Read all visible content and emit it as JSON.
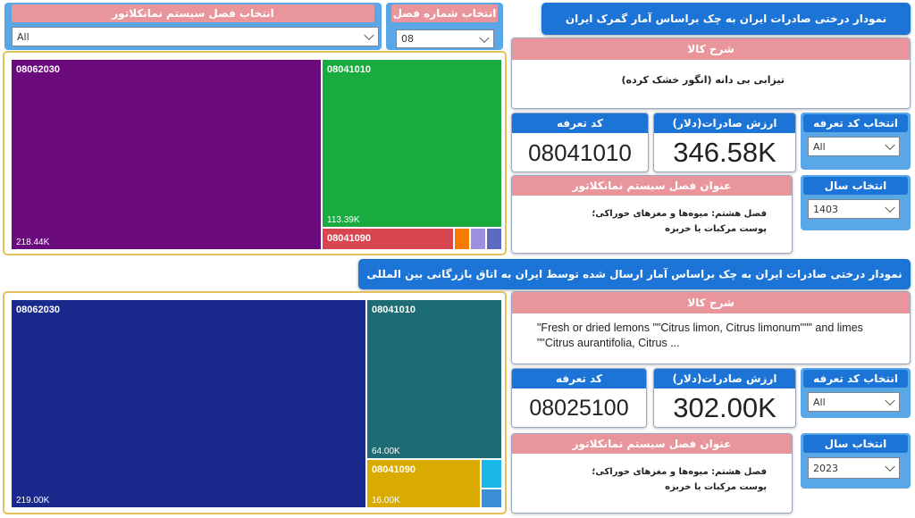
{
  "top": {
    "title": "نمودار درختی صادرات ایران به چک براساس آمار گمرک ایران",
    "nomenclature_slicer": {
      "label": "انتخاب فصل سیستم نمانکلاتور",
      "value": "All"
    },
    "chapter_slicer": {
      "label": "انتخاب شماره فصل",
      "value": "08"
    },
    "goods_desc": {
      "label": "شرح کالا",
      "value": "تیزابی بی دانه (انگور خشک کرده)"
    },
    "tariff_code": {
      "label": "کد تعرفه",
      "value": "08041010"
    },
    "export_value": {
      "label": "ارزش صادرات(دلار)",
      "value": "346.58K"
    },
    "tariff_slicer": {
      "label": "انتخاب کد تعرفه",
      "value": "All"
    },
    "chapter_title": {
      "label": "عنوان فصل سیستم نمانکلاتور",
      "value": "فصل هشتم: میوه‌ها و مغزهای خوراکی؛ پوست مرکبات یا خربزه"
    },
    "year_slicer": {
      "label": "انتخاب سال",
      "value": "1403"
    },
    "treemap": [
      {
        "code": "08062030",
        "value_label": "218.44K",
        "value": 218.44,
        "color": "#6b0a7c"
      },
      {
        "code": "08041010",
        "value_label": "113.39K",
        "value": 113.39,
        "color": "#1aab40"
      },
      {
        "code": "08041090",
        "value_label": "",
        "value": 20,
        "color": "#d64550"
      }
    ],
    "treemap_small_colors": [
      "#f57c00",
      "#9c8fe0",
      "#5c6bc0"
    ]
  },
  "bottom": {
    "title": "نمودار درختی صادرات ایران به چک براساس آمار ارسال شده توسط ایران به اتاق بازرگانی بین المللی",
    "goods_desc": {
      "label": "شرح کالا",
      "value": "\"Fresh or dried lemons \"\"Citrus limon, Citrus limonum\"\"\" and limes \"\"Citrus aurantifolia, Citrus ..."
    },
    "tariff_code": {
      "label": "کد تعرفه",
      "value": "08025100"
    },
    "export_value": {
      "label": "ارزش صادرات(دلار)",
      "value": "302.00K"
    },
    "tariff_slicer": {
      "label": "انتخاب کد تعرفه",
      "value": "All"
    },
    "chapter_title": {
      "label": "عنوان فصل سیستم نمانکلاتور",
      "value": "فصل هشتم: میوه‌ها و مغزهای خوراکی؛ پوست مرکبات یا خربزه"
    },
    "year_slicer": {
      "label": "انتخاب سال",
      "value": "2023"
    },
    "treemap": [
      {
        "code": "08062030",
        "value_label": "219.00K",
        "value": 219.0,
        "color": "#1a2a8c"
      },
      {
        "code": "08041010",
        "value_label": "64.00K",
        "value": 64.0,
        "color": "#1d6b73"
      },
      {
        "code": "08041090",
        "value_label": "16.00K",
        "value": 16.0,
        "color": "#d9ab00"
      }
    ],
    "treemap_small_colors": [
      "#1ab8e8",
      "#3a8fd6"
    ]
  }
}
